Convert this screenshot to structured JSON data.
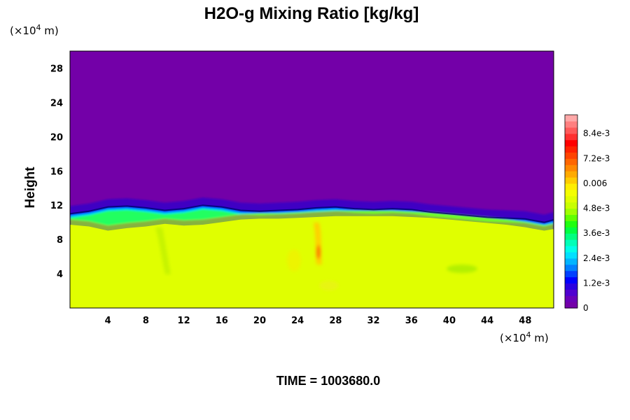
{
  "chart_data": {
    "type": "heatmap",
    "title": "H2O-g Mixing Ratio [kg/kg]",
    "x_unit": {
      "prefix": "(×10",
      "exp": "4",
      "suffix": " m)"
    },
    "y_unit": {
      "prefix": "(×10",
      "exp": "4",
      "suffix": " m)"
    },
    "ylabel": "Height",
    "xlabel": "",
    "xlim": [
      0,
      51
    ],
    "ylim": [
      0,
      30
    ],
    "x_ticks": [
      "4",
      "8",
      "12",
      "16",
      "20",
      "24",
      "28",
      "32",
      "36",
      "40",
      "44",
      "48"
    ],
    "x_tick_values": [
      4,
      8,
      12,
      16,
      20,
      24,
      28,
      32,
      36,
      40,
      44,
      48
    ],
    "y_ticks": [
      "4",
      "8",
      "12",
      "16",
      "20",
      "24",
      "28"
    ],
    "y_tick_values": [
      4,
      8,
      12,
      16,
      20,
      24,
      28
    ],
    "field": {
      "upper_value": 0,
      "lower_value": 0.006,
      "interface_x": [
        0,
        2,
        4,
        6,
        8,
        10,
        12,
        14,
        16,
        18,
        20,
        22,
        24,
        26,
        28,
        30,
        32,
        34,
        36,
        38,
        40,
        42,
        44,
        46,
        48,
        50,
        51
      ],
      "interface_height": [
        11.0,
        11.3,
        11.8,
        11.9,
        11.7,
        11.4,
        11.6,
        12.0,
        11.8,
        11.4,
        11.3,
        11.4,
        11.5,
        11.7,
        11.8,
        11.6,
        11.5,
        11.6,
        11.5,
        11.2,
        11.0,
        10.8,
        10.6,
        10.5,
        10.4,
        10.0,
        10.3
      ],
      "moist_layer_top": [
        10.3,
        10.1,
        9.6,
        9.9,
        10.1,
        10.4,
        10.2,
        10.3,
        10.6,
        10.9,
        11.0,
        11.0,
        11.1,
        11.2,
        11.3,
        11.3,
        11.3,
        11.3,
        11.2,
        11.1,
        10.9,
        10.7,
        10.5,
        10.3,
        10.0,
        9.6,
        9.8
      ]
    },
    "colorbar": {
      "labels": [
        "0",
        "1.2e-3",
        "2.4e-3",
        "3.6e-3",
        "4.8e-3",
        "0.006",
        "7.2e-3",
        "8.4e-3"
      ],
      "label_values": [
        0,
        0.0012,
        0.0024,
        0.0036,
        0.0048,
        0.006,
        0.0072,
        0.0084
      ],
      "min": 0,
      "max": 0.0093,
      "levels": 31,
      "colors": [
        "#7300a8",
        "#6a00b8",
        "#5000d0",
        "#2a00e0",
        "#0000ff",
        "#0040ff",
        "#0080ff",
        "#00b4ff",
        "#00e0ff",
        "#00ffe8",
        "#00ffb8",
        "#00ff80",
        "#00ff40",
        "#20ff10",
        "#60ff00",
        "#a0ff00",
        "#c8ff00",
        "#e0ff00",
        "#f4ff00",
        "#ffee00",
        "#ffcc00",
        "#ffaa00",
        "#ff8800",
        "#ff6600",
        "#ff4400",
        "#ff2200",
        "#ff0000",
        "#ff3030",
        "#ff5a5a",
        "#ff8080",
        "#ffa8a8"
      ]
    },
    "colors": {
      "upper": "#7300a8",
      "lower": "#e0ff00",
      "streak": "#ffd000",
      "core": "#ff7a00"
    }
  },
  "footer": {
    "time_label": "TIME = 1003680.0"
  }
}
